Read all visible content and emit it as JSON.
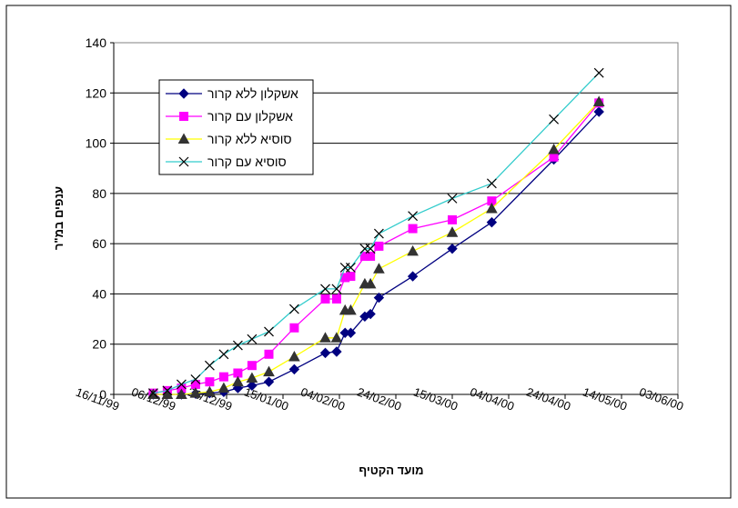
{
  "chart_data": {
    "type": "line",
    "xlabel": "מועד הקטיף",
    "ylabel": "ענפים במ\"ר",
    "ylim": [
      0,
      140
    ],
    "yticks": [
      0,
      20,
      40,
      60,
      80,
      100,
      120,
      140
    ],
    "xlim": [
      "1999-11-16",
      "2000-06-03"
    ],
    "xtick_labels": [
      "16/11/99",
      "06/12/99",
      "26/12/99",
      "15/01/00",
      "04/02/00",
      "24/02/00",
      "15/03/00",
      "04/04/00",
      "24/04/00",
      "14/05/00",
      "03/06/00"
    ],
    "grid": "horizontal",
    "legend_position": "top-left",
    "series": [
      {
        "name": "אשקלון ללא קרור",
        "color": "#000080",
        "line_color": "#000080",
        "marker": "diamond",
        "points": [
          {
            "x": "1999-11-30",
            "y": 0
          },
          {
            "x": "1999-12-05",
            "y": 0
          },
          {
            "x": "1999-12-10",
            "y": 0
          },
          {
            "x": "1999-12-15",
            "y": 0.3
          },
          {
            "x": "1999-12-20",
            "y": 0.5
          },
          {
            "x": "1999-12-25",
            "y": 1
          },
          {
            "x": "1999-12-30",
            "y": 2.5
          },
          {
            "x": "2000-01-04",
            "y": 3.5
          },
          {
            "x": "2000-01-10",
            "y": 5
          },
          {
            "x": "2000-01-19",
            "y": 10
          },
          {
            "x": "2000-01-30",
            "y": 16.5
          },
          {
            "x": "2000-02-03",
            "y": 17
          },
          {
            "x": "2000-02-06",
            "y": 24.5
          },
          {
            "x": "2000-02-08",
            "y": 24.5
          },
          {
            "x": "2000-02-13",
            "y": 31
          },
          {
            "x": "2000-02-15",
            "y": 32
          },
          {
            "x": "2000-02-18",
            "y": 38.5
          },
          {
            "x": "2000-03-01",
            "y": 47
          },
          {
            "x": "2000-03-15",
            "y": 58
          },
          {
            "x": "2000-03-29",
            "y": 68.5
          },
          {
            "x": "2000-04-20",
            "y": 93.5
          },
          {
            "x": "2000-05-06",
            "y": 112.5
          }
        ]
      },
      {
        "name": "אשקלון עם קרור",
        "color": "#ff00ff",
        "line_color": "#ff00ff",
        "marker": "square",
        "points": [
          {
            "x": "1999-11-30",
            "y": 0.5
          },
          {
            "x": "1999-12-05",
            "y": 1.5
          },
          {
            "x": "1999-12-10",
            "y": 2.5
          },
          {
            "x": "1999-12-15",
            "y": 4
          },
          {
            "x": "1999-12-20",
            "y": 5
          },
          {
            "x": "1999-12-25",
            "y": 7
          },
          {
            "x": "1999-12-30",
            "y": 8.5
          },
          {
            "x": "2000-01-04",
            "y": 11.5
          },
          {
            "x": "2000-01-10",
            "y": 16
          },
          {
            "x": "2000-01-19",
            "y": 26.5
          },
          {
            "x": "2000-01-30",
            "y": 38
          },
          {
            "x": "2000-02-03",
            "y": 38
          },
          {
            "x": "2000-02-06",
            "y": 46.5
          },
          {
            "x": "2000-02-08",
            "y": 47
          },
          {
            "x": "2000-02-13",
            "y": 55
          },
          {
            "x": "2000-02-15",
            "y": 55
          },
          {
            "x": "2000-02-18",
            "y": 59
          },
          {
            "x": "2000-03-01",
            "y": 66
          },
          {
            "x": "2000-03-15",
            "y": 69.5
          },
          {
            "x": "2000-03-29",
            "y": 77
          },
          {
            "x": "2000-04-20",
            "y": 94.5
          },
          {
            "x": "2000-05-06",
            "y": 116
          }
        ]
      },
      {
        "name": "סוסיא ללא קרור",
        "color": "#333333",
        "line_color": "#ffff00",
        "marker": "triangle",
        "points": [
          {
            "x": "1999-11-30",
            "y": 0
          },
          {
            "x": "1999-12-05",
            "y": 0
          },
          {
            "x": "1999-12-10",
            "y": 0
          },
          {
            "x": "1999-12-15",
            "y": 0.5
          },
          {
            "x": "1999-12-20",
            "y": 1
          },
          {
            "x": "1999-12-25",
            "y": 2.5
          },
          {
            "x": "1999-12-30",
            "y": 5
          },
          {
            "x": "2000-01-04",
            "y": 6.5
          },
          {
            "x": "2000-01-10",
            "y": 9
          },
          {
            "x": "2000-01-19",
            "y": 15
          },
          {
            "x": "2000-01-30",
            "y": 22.5
          },
          {
            "x": "2000-02-03",
            "y": 22.5
          },
          {
            "x": "2000-02-06",
            "y": 33.5
          },
          {
            "x": "2000-02-08",
            "y": 33.5
          },
          {
            "x": "2000-02-13",
            "y": 44
          },
          {
            "x": "2000-02-15",
            "y": 44
          },
          {
            "x": "2000-02-18",
            "y": 50
          },
          {
            "x": "2000-03-01",
            "y": 57
          },
          {
            "x": "2000-03-15",
            "y": 64.5
          },
          {
            "x": "2000-03-29",
            "y": 74
          },
          {
            "x": "2000-04-20",
            "y": 97.5
          },
          {
            "x": "2000-05-06",
            "y": 116.5
          }
        ]
      },
      {
        "name": "סוסיא עם קרור",
        "color": "#000000",
        "line_color": "#33cccc",
        "marker": "x",
        "points": [
          {
            "x": "1999-11-30",
            "y": 0.5
          },
          {
            "x": "1999-12-05",
            "y": 1.5
          },
          {
            "x": "1999-12-10",
            "y": 4
          },
          {
            "x": "1999-12-15",
            "y": 6
          },
          {
            "x": "1999-12-20",
            "y": 11.5
          },
          {
            "x": "1999-12-25",
            "y": 16
          },
          {
            "x": "1999-12-30",
            "y": 19.5
          },
          {
            "x": "2000-01-04",
            "y": 22
          },
          {
            "x": "2000-01-10",
            "y": 25
          },
          {
            "x": "2000-01-19",
            "y": 34
          },
          {
            "x": "2000-01-30",
            "y": 42
          },
          {
            "x": "2000-02-03",
            "y": 42
          },
          {
            "x": "2000-02-06",
            "y": 50.5
          },
          {
            "x": "2000-02-08",
            "y": 50.5
          },
          {
            "x": "2000-02-13",
            "y": 58
          },
          {
            "x": "2000-02-15",
            "y": 58
          },
          {
            "x": "2000-02-18",
            "y": 64
          },
          {
            "x": "2000-03-01",
            "y": 71
          },
          {
            "x": "2000-03-15",
            "y": 78
          },
          {
            "x": "2000-03-29",
            "y": 84
          },
          {
            "x": "2000-04-20",
            "y": 109.5
          },
          {
            "x": "2000-05-06",
            "y": 128
          }
        ]
      }
    ]
  }
}
